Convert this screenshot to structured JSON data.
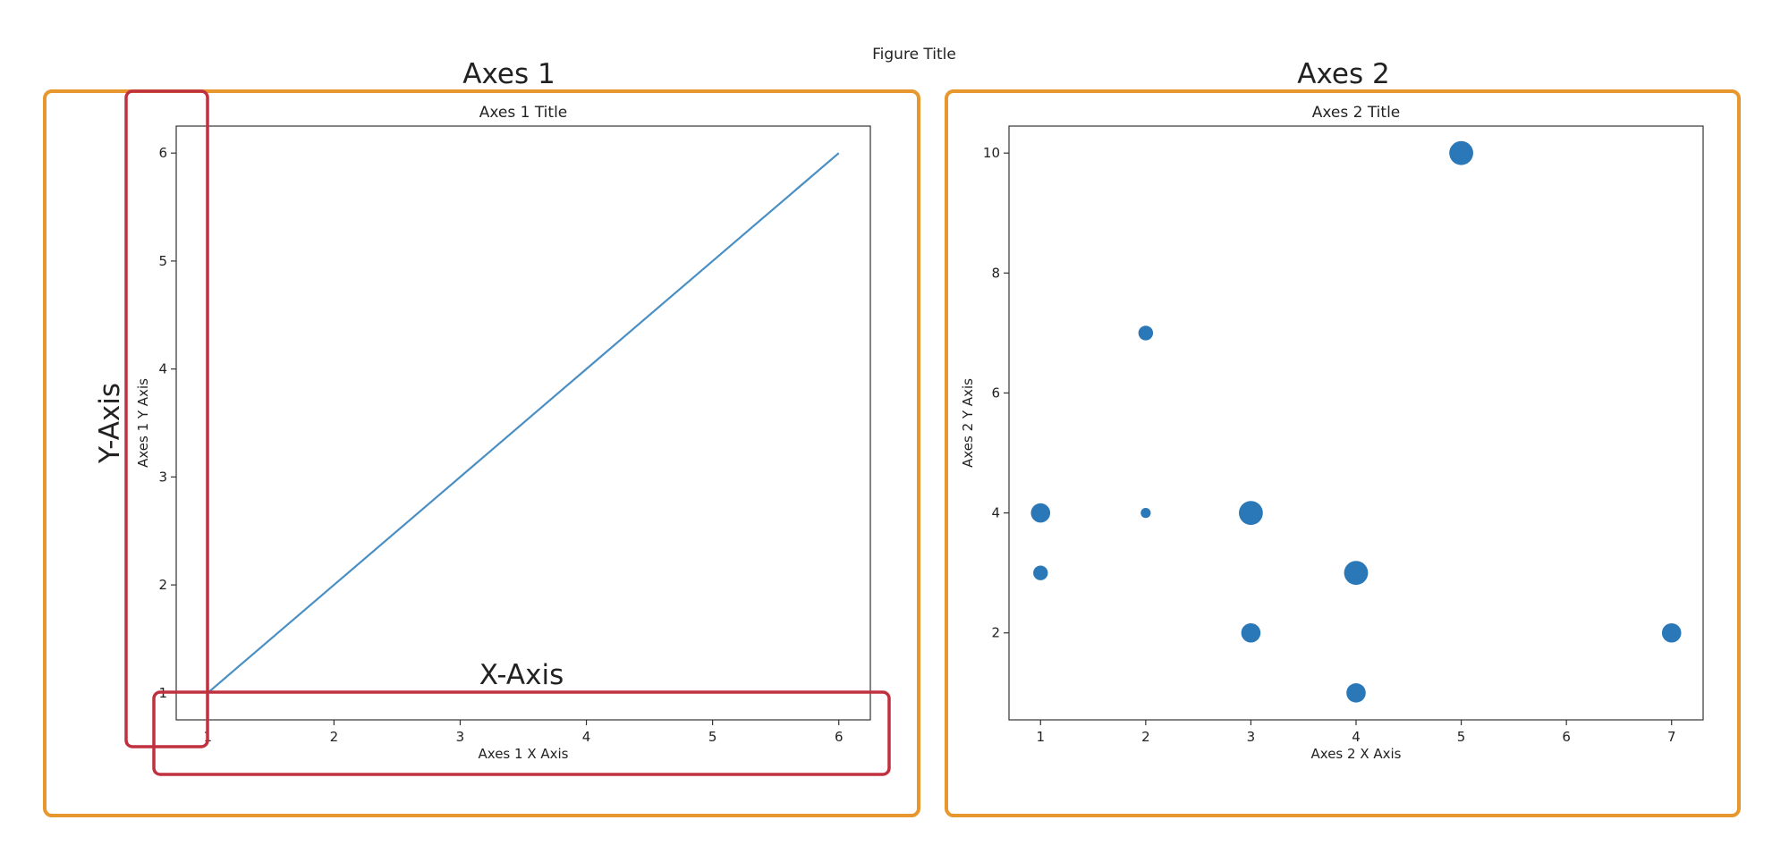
{
  "figure": {
    "title": "Figure Title",
    "panel_labels": [
      "Axes 1",
      "Axes 2"
    ],
    "annotation_labels": {
      "x_axis": "X-Axis",
      "y_axis": "Y-Axis"
    }
  },
  "colors": {
    "panel_border": "#e8962e",
    "annotation_border": "#c0303f",
    "series": "#2b78b8",
    "line": "#4a8fc4",
    "axis": "#333333",
    "text": "#222222"
  },
  "chart_data": [
    {
      "type": "line",
      "title": "Axes 1 Title",
      "xlabel": "Axes 1 X Axis",
      "ylabel": "Axes 1 Y Axis",
      "xlim": [
        0.75,
        6.25
      ],
      "ylim": [
        0.75,
        6.25
      ],
      "xticks": [
        1,
        2,
        3,
        4,
        5,
        6
      ],
      "yticks": [
        1,
        2,
        3,
        4,
        5,
        6
      ],
      "grid": false,
      "series": [
        {
          "x": [
            1,
            2,
            3,
            4,
            5,
            6
          ],
          "y": [
            1,
            2,
            3,
            4,
            5,
            6
          ]
        }
      ]
    },
    {
      "type": "scatter",
      "title": "Axes 2 Title",
      "xlabel": "Axes 2 X Axis",
      "ylabel": "Axes 2 Y Axis",
      "xlim": [
        0.7,
        7.3
      ],
      "ylim": [
        0.55,
        10.45
      ],
      "xticks": [
        1,
        2,
        3,
        4,
        5,
        6,
        7
      ],
      "yticks": [
        2,
        4,
        6,
        8,
        10
      ],
      "grid": false,
      "series": [
        {
          "points": [
            {
              "x": 1,
              "y": 4,
              "size": 3
            },
            {
              "x": 1,
              "y": 3,
              "size": 2
            },
            {
              "x": 2,
              "y": 7,
              "size": 2
            },
            {
              "x": 2,
              "y": 4,
              "size": 1
            },
            {
              "x": 3,
              "y": 4,
              "size": 4
            },
            {
              "x": 3,
              "y": 2,
              "size": 3
            },
            {
              "x": 4,
              "y": 3,
              "size": 4
            },
            {
              "x": 4,
              "y": 1,
              "size": 3
            },
            {
              "x": 5,
              "y": 10,
              "size": 4
            },
            {
              "x": 7,
              "y": 2,
              "size": 3
            }
          ]
        }
      ]
    }
  ]
}
